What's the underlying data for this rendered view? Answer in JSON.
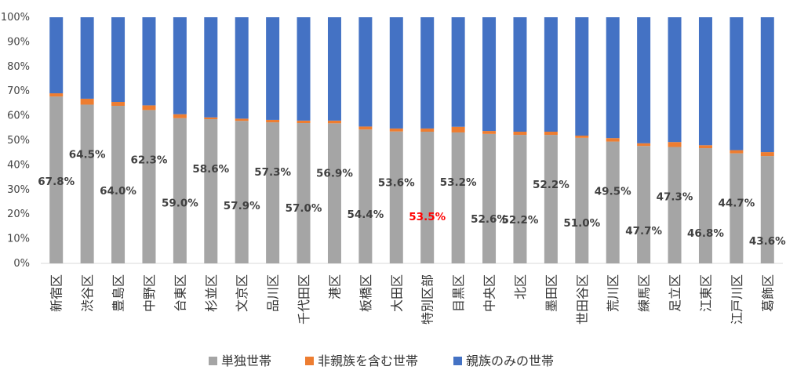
{
  "chart_data": {
    "type": "bar",
    "stacked": true,
    "percent_stacked": true,
    "ylim": [
      0,
      100
    ],
    "y_ticks": [
      "0%",
      "10%",
      "20%",
      "30%",
      "40%",
      "50%",
      "60%",
      "70%",
      "80%",
      "90%",
      "100%"
    ],
    "categories": [
      "新宿区",
      "渋谷区",
      "豊島区",
      "中野区",
      "台東区",
      "杉並区",
      "文京区",
      "品川区",
      "千代田区",
      "港区",
      "板橋区",
      "大田区",
      "特別区部",
      "目黒区",
      "中央区",
      "北区",
      "墨田区",
      "世田谷区",
      "荒川区",
      "練馬区",
      "足立区",
      "江東区",
      "江戸川区",
      "葛飾区"
    ],
    "series": [
      {
        "name": "単独世帯",
        "color": "#a5a5a5",
        "values": [
          67.8,
          64.5,
          64.0,
          62.3,
          59.0,
          58.6,
          57.9,
          57.3,
          57.0,
          56.9,
          54.4,
          53.6,
          53.5,
          53.2,
          52.6,
          52.2,
          52.2,
          51.0,
          49.5,
          47.7,
          47.3,
          46.8,
          44.7,
          43.6
        ]
      },
      {
        "name": "非親族を含む世帯",
        "color": "#ed7d31",
        "values": [
          1.3,
          2.4,
          1.6,
          1.9,
          1.6,
          0.7,
          0.9,
          1.0,
          1.0,
          1.1,
          1.2,
          1.2,
          1.3,
          2.3,
          1.2,
          1.3,
          1.3,
          0.9,
          1.4,
          1.1,
          2.0,
          1.2,
          1.3,
          1.6
        ]
      },
      {
        "name": "親族のみの世帯",
        "color": "#4472c4",
        "values": [
          30.9,
          33.1,
          34.4,
          35.8,
          39.4,
          40.7,
          41.2,
          41.7,
          42.0,
          42.0,
          44.4,
          45.2,
          45.2,
          44.5,
          46.2,
          46.5,
          46.5,
          48.1,
          49.1,
          51.2,
          50.7,
          52.0,
          54.0,
          54.8
        ]
      }
    ],
    "data_labels": {
      "series": "単独世帯",
      "values": [
        "67.8%",
        "64.5%",
        "64.0%",
        "62.3%",
        "59.0%",
        "58.6%",
        "57.9%",
        "57.3%",
        "57.0%",
        "56.9%",
        "54.4%",
        "53.6%",
        "53.5%",
        "53.2%",
        "52.6%",
        "52.2%",
        "52.2%",
        "51.0%",
        "49.5%",
        "47.7%",
        "47.3%",
        "46.8%",
        "44.7%",
        "43.6%"
      ],
      "color": "#404040",
      "highlight_index": 12,
      "highlight_color": "#ff0000"
    },
    "legend_position": "bottom",
    "grid": false
  }
}
